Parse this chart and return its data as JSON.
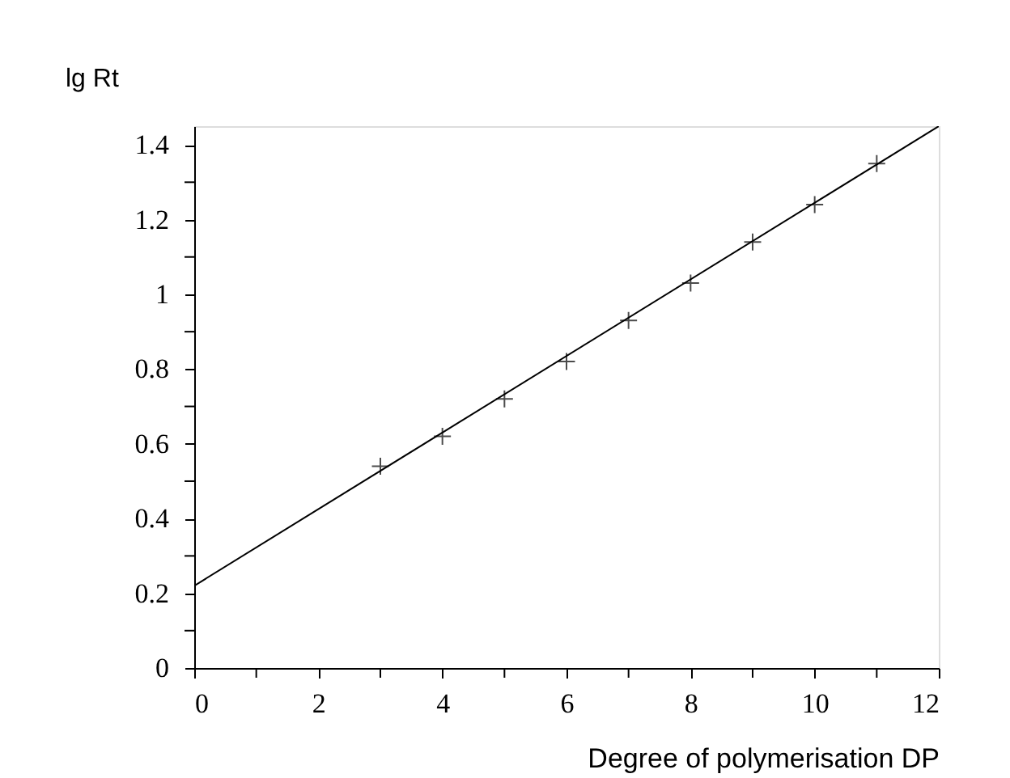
{
  "chart_data": {
    "type": "scatter",
    "xlabel": "Degree of polymerisation  DP",
    "ylabel": "lg Rt",
    "xlim": [
      0,
      12
    ],
    "ylim": [
      0,
      1.45
    ],
    "xticks": [
      0,
      {
        "value": 1,
        "label": null
      },
      2,
      {
        "value": 3,
        "label": null
      },
      4,
      {
        "value": 5,
        "label": null
      },
      6,
      {
        "value": 7,
        "label": null
      },
      8,
      {
        "value": 9,
        "label": null
      },
      10,
      {
        "value": 11,
        "label": null
      },
      12
    ],
    "yticks": [
      0,
      {
        "value": 0.1,
        "label": null
      },
      0.2,
      {
        "value": 0.3,
        "label": null
      },
      0.4,
      {
        "value": 0.5,
        "label": null
      },
      0.6,
      {
        "value": 0.7,
        "label": null
      },
      0.8,
      {
        "value": 0.9,
        "label": null
      },
      1,
      {
        "value": 1.1,
        "label": null
      },
      1.2,
      {
        "value": 1.3,
        "label": null
      },
      1.4
    ],
    "grid": false,
    "series": [
      {
        "color": "#000000",
        "marker": "cross",
        "x": [
          3,
          4,
          5,
          6,
          7,
          8,
          9,
          10,
          11
        ],
        "values": [
          0.54,
          0.62,
          0.72,
          0.82,
          0.93,
          1.03,
          1.14,
          1.24,
          1.35
        ]
      },
      {
        "type": "line",
        "color": "#000000",
        "x": [
          0,
          12
        ],
        "values": [
          0.22,
          1.45
        ],
        "line_style": "solid"
      }
    ]
  }
}
